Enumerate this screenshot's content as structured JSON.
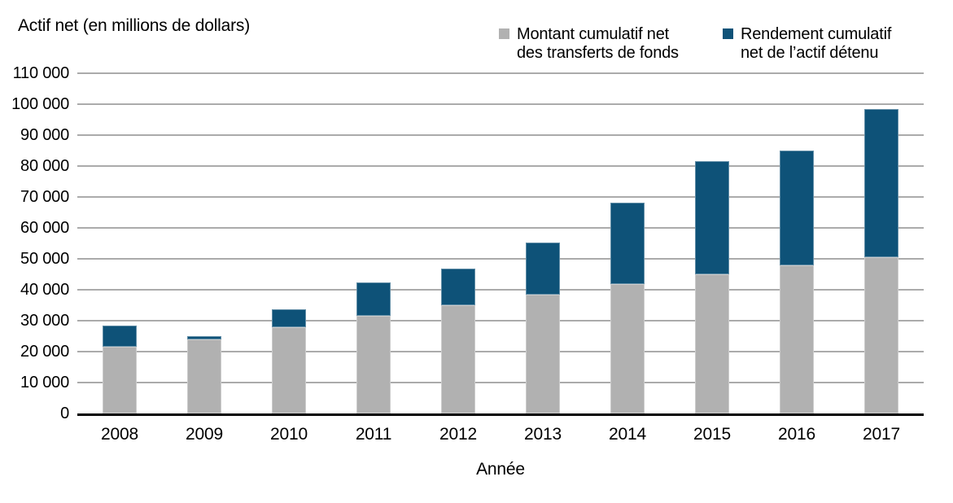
{
  "title": "Actif net (en millions de dollars)",
  "legend": {
    "items": [
      {
        "name": "transfers",
        "color": "#b1b1b1",
        "line1": "Montant cumulatif net",
        "line2": "des transferts de fonds"
      },
      {
        "name": "returns",
        "color": "#0e5278",
        "line1": "Rendement cumulatif",
        "line2": "net de l’actif détenu"
      }
    ]
  },
  "chart_data": {
    "type": "bar",
    "stacked": true,
    "title": "Actif net (en millions de dollars)",
    "xlabel": "Année",
    "ylabel": "Actif net (en millions de dollars)",
    "categories": [
      "2008",
      "2009",
      "2010",
      "2011",
      "2012",
      "2013",
      "2014",
      "2015",
      "2016",
      "2017"
    ],
    "series": [
      {
        "name": "Montant cumulatif net des transferts de fonds",
        "color": "#b1b1b1",
        "values": [
          21500,
          24000,
          27800,
          31500,
          34900,
          38400,
          41800,
          45000,
          47800,
          50500
        ]
      },
      {
        "name": "Rendement cumulatif net de l’actif détenu",
        "color": "#0e5278",
        "values": [
          6900,
          900,
          5900,
          10800,
          12000,
          16900,
          26400,
          36500,
          37100,
          47900
        ]
      }
    ],
    "totals": [
      28400,
      24900,
      33700,
      42300,
      46900,
      55300,
      68200,
      81500,
      84900,
      98400
    ],
    "ylim": [
      0,
      110000
    ],
    "ytick_step": 10000,
    "grid": true,
    "legend_position": "top-right"
  },
  "colors": {
    "background": "#ffffff",
    "grid": "#ababab",
    "axis": "#000000",
    "text": "#000000"
  }
}
